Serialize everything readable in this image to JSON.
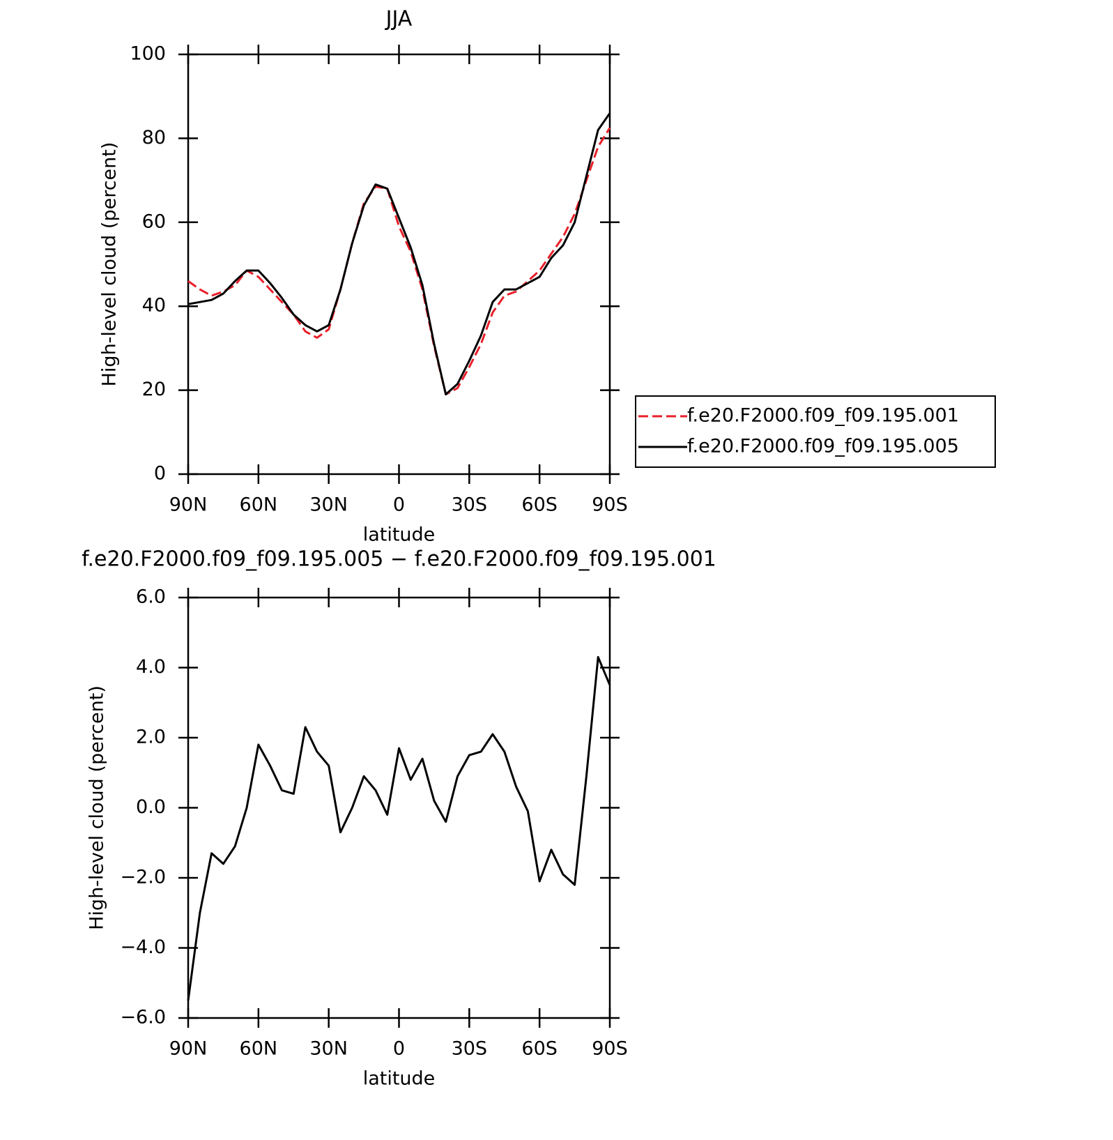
{
  "chart_data": [
    {
      "type": "line",
      "title": "JJA",
      "xlabel": "latitude",
      "ylabel": "High-level cloud (percent)",
      "x": [
        90,
        85,
        80,
        75,
        70,
        65,
        60,
        55,
        50,
        45,
        40,
        35,
        30,
        25,
        20,
        15,
        10,
        5,
        0,
        -5,
        -10,
        -15,
        -20,
        -25,
        -30,
        -35,
        -40,
        -45,
        -50,
        -55,
        -60,
        -65,
        -70,
        -75,
        -80,
        -85,
        -90
      ],
      "series": [
        {
          "name": "f.e20.F2000.f09_f09.195.001",
          "color": "#e8202a",
          "linestyle": "dashed",
          "values": [
            46,
            44,
            42.5,
            43.5,
            45,
            48.5,
            47,
            44,
            41,
            38,
            34,
            32.5,
            34.5,
            44,
            55,
            64.5,
            68.5,
            68,
            59,
            53,
            44,
            30.5,
            19,
            20.5,
            25.5,
            31,
            38.5,
            42.5,
            43.5,
            46,
            48.5,
            52.5,
            56.5,
            62,
            70,
            78,
            82.5
          ]
        },
        {
          "name": "f.e20.F2000.f09_f09.195.005",
          "color": "#000000",
          "linestyle": "solid",
          "values": [
            40.5,
            41,
            41.5,
            43,
            46,
            48.5,
            48.5,
            45.5,
            42,
            38,
            35.5,
            34,
            35.5,
            44,
            55,
            64,
            69,
            68,
            61,
            54,
            45,
            31,
            19,
            21.5,
            27,
            33,
            41,
            44,
            44,
            45.5,
            47,
            51.5,
            54.5,
            60,
            71,
            82,
            86
          ]
        }
      ],
      "xlim": [
        90,
        -90
      ],
      "xticks": [
        {
          "value": 90,
          "label": "90N"
        },
        {
          "value": 60,
          "label": "60N"
        },
        {
          "value": 30,
          "label": "30N"
        },
        0,
        {
          "value": -30,
          "label": "30S"
        },
        {
          "value": -60,
          "label": "60S"
        },
        {
          "value": -90,
          "label": "90S"
        }
      ],
      "ylim": [
        0,
        100
      ],
      "yticks": [
        0,
        20,
        40,
        60,
        80,
        100
      ],
      "legend": "right"
    },
    {
      "type": "line",
      "title": "f.e20.F2000.f09_f09.195.005 − f.e20.F2000.f09_f09.195.001",
      "xlabel": "latitude",
      "ylabel": "High-level cloud (percent)",
      "x": [
        90,
        85,
        80,
        75,
        70,
        65,
        60,
        55,
        50,
        45,
        40,
        35,
        30,
        25,
        20,
        15,
        10,
        5,
        0,
        -5,
        -10,
        -15,
        -20,
        -25,
        -30,
        -35,
        -40,
        -45,
        -50,
        -55,
        -60,
        -65,
        -70,
        -75,
        -80,
        -85,
        -90
      ],
      "series": [
        {
          "color": "#000000",
          "linestyle": "solid",
          "values": [
            -5.5,
            -3.0,
            -1.3,
            -1.6,
            -1.1,
            0.0,
            1.8,
            1.2,
            0.5,
            0.4,
            2.3,
            1.6,
            1.2,
            -0.7,
            0.0,
            0.9,
            0.5,
            -0.2,
            1.7,
            0.8,
            1.4,
            0.2,
            -0.4,
            0.9,
            1.5,
            1.6,
            2.1,
            1.6,
            0.6,
            -0.1,
            -2.1,
            -1.2,
            -1.9,
            -2.2,
            0.9,
            4.3,
            3.5
          ]
        }
      ],
      "xlim": [
        90,
        -90
      ],
      "xticks": [
        {
          "value": 90,
          "label": "90N"
        },
        {
          "value": 60,
          "label": "60N"
        },
        {
          "value": 30,
          "label": "30N"
        },
        0,
        {
          "value": -30,
          "label": "30S"
        },
        {
          "value": -60,
          "label": "60S"
        },
        {
          "value": -90,
          "label": "90S"
        }
      ],
      "ylim": [
        -6,
        6
      ],
      "yticks": [
        {
          "value": -6,
          "label": "−6.0"
        },
        {
          "value": -4,
          "label": "−4.0"
        },
        {
          "value": -2,
          "label": "−2.0"
        },
        {
          "value": 0,
          "label": "0.0"
        },
        {
          "value": 2,
          "label": "2.0"
        },
        {
          "value": 4,
          "label": "4.0"
        },
        {
          "value": 6,
          "label": "6.0"
        }
      ]
    }
  ]
}
